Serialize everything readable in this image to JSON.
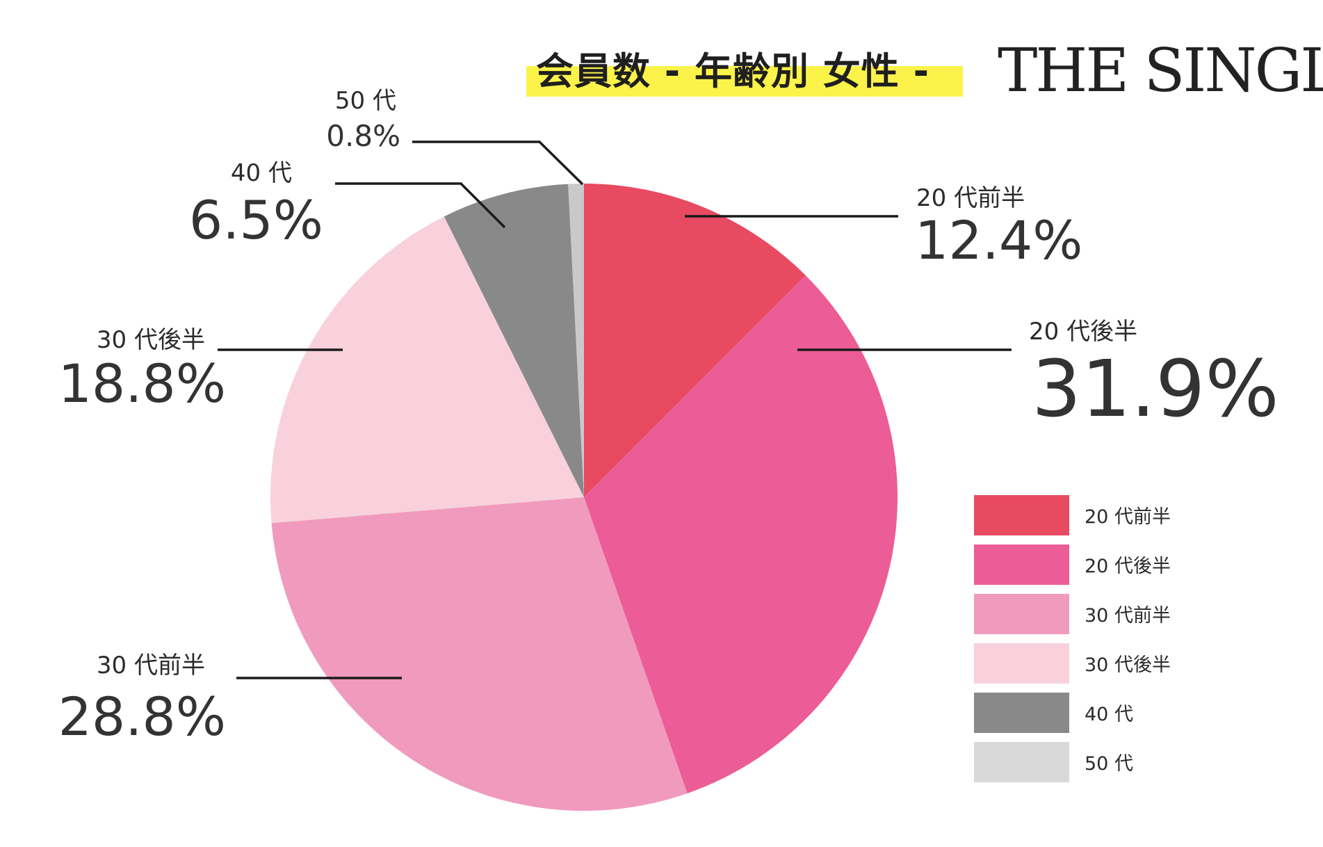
{
  "title": "会員数 - 年齢別 女性 -",
  "brand": "THE SINGLE",
  "chart_data": {
    "type": "pie",
    "start_angle_deg": 0,
    "direction": "clockwise",
    "slices": [
      {
        "label": "20 代前半",
        "value": 12.4,
        "display": "12.4%",
        "color": "#e84a62"
      },
      {
        "label": "20 代後半",
        "value": 31.9,
        "display": "31.9%",
        "color": "#ec5c96"
      },
      {
        "label": "30 代前半",
        "value": 28.8,
        "display": "28.8%",
        "color": "#f09bbd"
      },
      {
        "label": "30 代後半",
        "value": 18.8,
        "display": "18.8%",
        "color": "#f8d1dc"
      },
      {
        "label": "40 代",
        "value": 6.5,
        "display": "6.5%",
        "color": "#898989"
      },
      {
        "label": "50 代",
        "value": 0.8,
        "display": "0.8%",
        "color": "#c9c9c9"
      }
    ],
    "legend": {
      "position": "right",
      "items": [
        {
          "label": "20 代前半",
          "color": "#e84a62"
        },
        {
          "label": "20 代後半",
          "color": "#ec5c96"
        },
        {
          "label": "30 代前半",
          "color": "#f09bbd"
        },
        {
          "label": "30 代後半",
          "color": "#f8d1dc"
        },
        {
          "label": "40 代",
          "color": "#898989"
        },
        {
          "label": "50 代",
          "color": "#d9d9d9"
        }
      ]
    }
  }
}
